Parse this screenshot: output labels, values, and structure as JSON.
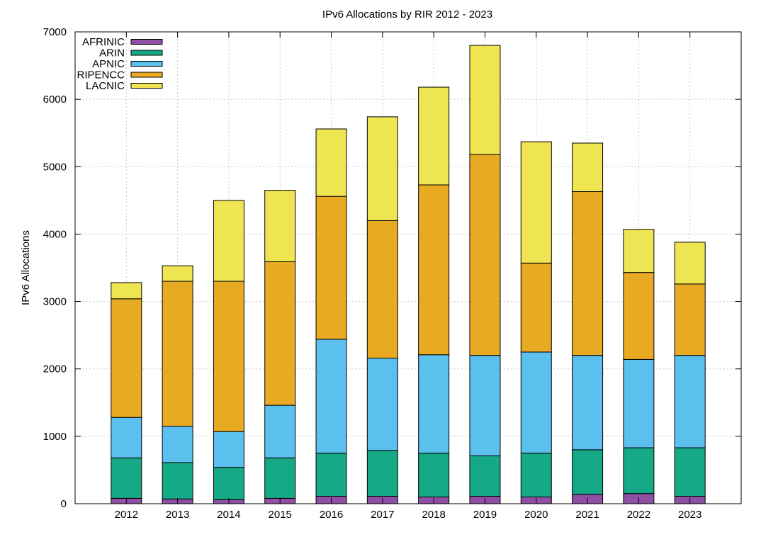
{
  "chart_data": {
    "type": "bar",
    "stacked": true,
    "title": "IPv6 Allocations by RIR 2012 - 2023",
    "xlabel": "",
    "ylabel": "IPv6 Allocations",
    "ylim": [
      0,
      7000
    ],
    "yticks": [
      0,
      1000,
      2000,
      3000,
      4000,
      5000,
      6000,
      7000
    ],
    "grid": true,
    "legend_position": "top-left",
    "categories": [
      "2012",
      "2013",
      "2014",
      "2015",
      "2016",
      "2017",
      "2018",
      "2019",
      "2020",
      "2021",
      "2022",
      "2023"
    ],
    "series": [
      {
        "name": "AFRINIC",
        "color": "#8e4fa5",
        "values": [
          80,
          70,
          60,
          80,
          110,
          110,
          100,
          110,
          100,
          140,
          150,
          110
        ]
      },
      {
        "name": "ARIN",
        "color": "#16a985",
        "values": [
          600,
          540,
          480,
          600,
          640,
          680,
          650,
          600,
          650,
          660,
          680,
          720
        ]
      },
      {
        "name": "APNIC",
        "color": "#5bc0ee",
        "values": [
          600,
          540,
          530,
          780,
          1690,
          1370,
          1460,
          1490,
          1500,
          1400,
          1310,
          1370
        ]
      },
      {
        "name": "RIPENCC",
        "color": "#e8a923",
        "values": [
          1760,
          2150,
          2230,
          2130,
          2120,
          2040,
          2520,
          2980,
          1320,
          2430,
          1290,
          1060
        ]
      },
      {
        "name": "LACNIC",
        "color": "#efe553",
        "values": [
          240,
          230,
          1200,
          1060,
          1000,
          1540,
          1450,
          1620,
          1800,
          720,
          640,
          620
        ]
      }
    ]
  }
}
